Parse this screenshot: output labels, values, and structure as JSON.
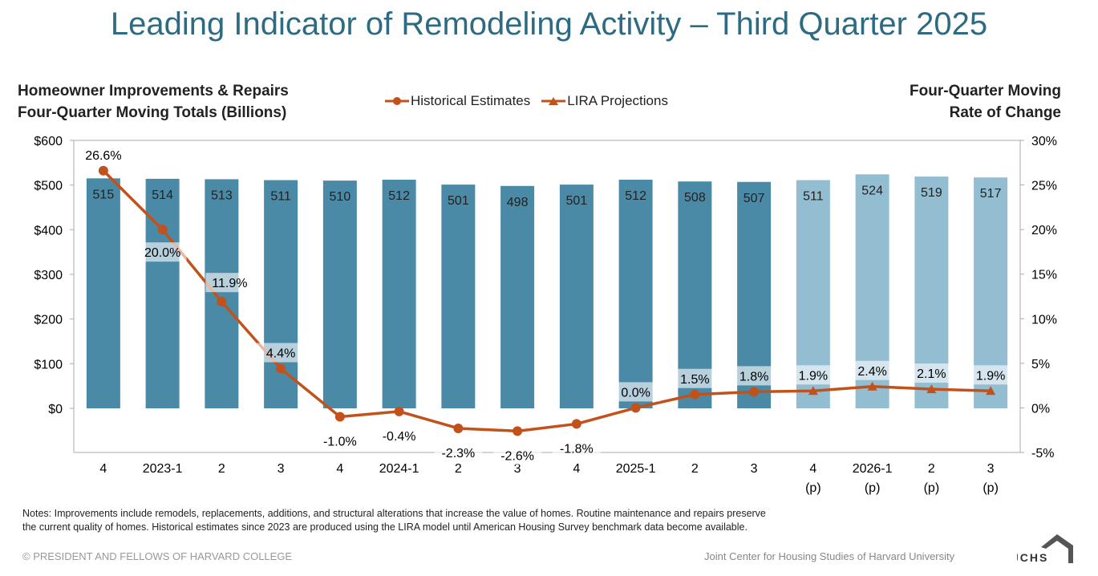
{
  "title": "Leading Indicator of Remodeling Activity – Third Quarter 2025",
  "left_axis_title": [
    "Homeowner Improvements & Repairs",
    "Four-Quarter Moving Totals (Billions)"
  ],
  "right_axis_title": [
    "Four-Quarter Moving",
    "Rate of Change"
  ],
  "notes": [
    "Notes: Improvements include remodels, replacements, additions, and structural alterations that increase the value of homes. Routine maintenance and repairs preserve",
    "the current quality of homes. Historical estimates since 2023 are produced using the LIRA model until American Housing Survey benchmark data become available."
  ],
  "copyright": "© PRESIDENT AND FELLOWS OF HARVARD COLLEGE",
  "org": "Joint Center for Housing Studies of Harvard University",
  "logo_text": "JCHS",
  "colors": {
    "bar_hist": "#4b8aa7",
    "bar_proj": "#93bdd1",
    "line": "#c2521b",
    "title": "#2e6b82"
  },
  "chart_data": {
    "type": "bar+line",
    "categories": [
      [
        "4",
        ""
      ],
      [
        "2023-1",
        ""
      ],
      [
        "2",
        ""
      ],
      [
        "3",
        ""
      ],
      [
        "4",
        ""
      ],
      [
        "2024-1",
        ""
      ],
      [
        "2",
        ""
      ],
      [
        "3",
        ""
      ],
      [
        "4",
        ""
      ],
      [
        "2025-1",
        ""
      ],
      [
        "2",
        ""
      ],
      [
        "3",
        ""
      ],
      [
        "4",
        "(p)"
      ],
      [
        "2026-1",
        "(p)"
      ],
      [
        "2",
        "(p)"
      ],
      [
        "3",
        "(p)"
      ]
    ],
    "left_axis": {
      "range": [
        0,
        600
      ],
      "ticks": [
        "$0",
        "$100",
        "$200",
        "$300",
        "$400",
        "$500",
        "$600"
      ],
      "values": [
        0,
        100,
        200,
        300,
        400,
        500,
        600
      ]
    },
    "right_axis": {
      "range": [
        -5,
        30
      ],
      "ticks": [
        "-5%",
        "0%",
        "5%",
        "10%",
        "15%",
        "20%",
        "25%",
        "30%"
      ],
      "values": [
        -5,
        0,
        5,
        10,
        15,
        20,
        25,
        30
      ]
    },
    "bars": {
      "name": "Four-Quarter Moving Totals",
      "values": [
        515,
        514,
        513,
        511,
        510,
        512,
        501,
        498,
        501,
        512,
        508,
        507,
        511,
        524,
        519,
        517
      ],
      "projected": [
        false,
        false,
        false,
        false,
        false,
        false,
        false,
        false,
        false,
        false,
        false,
        false,
        true,
        true,
        true,
        true
      ]
    },
    "series": [
      {
        "name": "Historical Estimates",
        "marker": "circle",
        "values": [
          26.6,
          20.0,
          11.9,
          4.4,
          -1.0,
          -0.4,
          -2.3,
          -2.6,
          -1.8,
          0.0,
          1.5,
          1.8,
          null,
          null,
          null,
          null
        ]
      },
      {
        "name": "LIRA Projections",
        "marker": "triangle",
        "values": [
          null,
          null,
          null,
          null,
          null,
          null,
          null,
          null,
          null,
          null,
          null,
          1.8,
          1.9,
          2.4,
          2.1,
          1.9
        ]
      }
    ],
    "rate_labels": [
      "26.6%",
      "20.0%",
      "11.9%",
      "4.4%",
      "-1.0%",
      "-0.4%",
      "-2.3%",
      "-2.6%",
      "-1.8%",
      "0.0%",
      "1.5%",
      "1.8%",
      "1.9%",
      "2.4%",
      "2.1%",
      "1.9%"
    ]
  }
}
